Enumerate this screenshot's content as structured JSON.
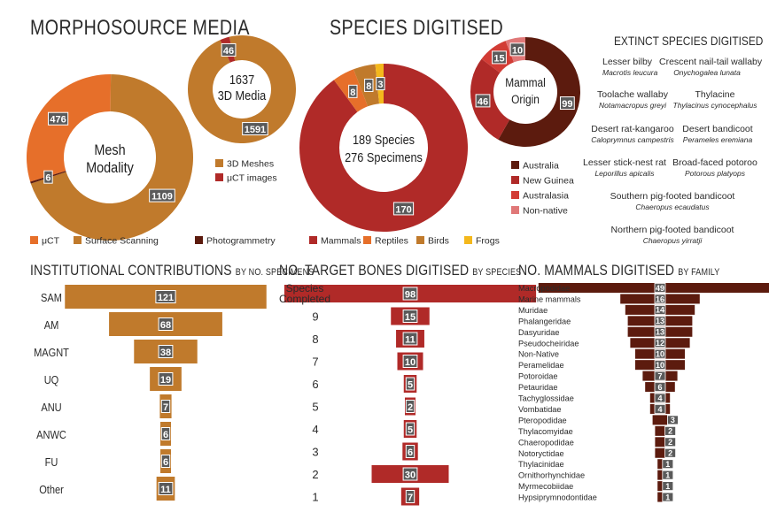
{
  "colors": {
    "ochre": "#C07A2C",
    "orange": "#E66F2A",
    "dark_brown": "#5C1B0E",
    "red": "#B02A28",
    "bright_red": "#D23C35",
    "light_red": "#E07878",
    "gold": "#F4B81C",
    "label_bg": "#5a5a5a"
  },
  "headings": {
    "morphosource": "MORPHOSOURCE MEDIA",
    "species": "SPECIES DIGITISED",
    "extinct": "EXTINCT SPECIES DIGITISED",
    "institutional": "INSTITUTIONAL CONTRIBUTIONS",
    "institutional_sub": "BY NO. SPECIMENS",
    "bones": "NO. TARGET BONES DIGITISED",
    "bones_sub": "BY SPECIES",
    "mammals": "NO. MAMMALS DIGITISED",
    "mammals_sub": "BY FAMILY"
  },
  "extinct_species": [
    {
      "name": "Lesser bilby",
      "sci": "Macrotis leucura"
    },
    {
      "name": "Crescent nail-tail wallaby",
      "sci": "Onychogalea lunata"
    },
    {
      "name": "Toolache wallaby",
      "sci": "Notamacropus greyi"
    },
    {
      "name": "Thylacine",
      "sci": "Thylacinus cynocephalus"
    },
    {
      "name": "Desert rat-kangaroo",
      "sci": "Caloprymnus campestris"
    },
    {
      "name": "Desert bandicoot",
      "sci": "Perameles eremiana"
    },
    {
      "name": "Lesser stick-nest rat",
      "sci": "Leporillus apicalis"
    },
    {
      "name": "Broad-faced potoroo",
      "sci": "Potorous platyops"
    },
    {
      "name": "Southern pig-footed bandicoot",
      "sci": "Chaeropus ecaudatus"
    },
    {
      "name": "Northern pig-footed bandicoot",
      "sci": "Chaeropus yirratji"
    }
  ],
  "chart_data": [
    {
      "id": "mesh_modality",
      "type": "pie",
      "center_label": [
        "Mesh",
        "Modality"
      ],
      "categories": [
        "μCT",
        "Surface Scanning",
        "Photogrammetry"
      ],
      "values": [
        476,
        1109,
        6
      ],
      "colors": [
        "#E66F2A",
        "#C07A2C",
        "#5C1B0E"
      ],
      "legend": "bottom"
    },
    {
      "id": "3d_media",
      "type": "pie",
      "center_label": [
        "1637",
        "3D Media"
      ],
      "categories": [
        "3D Meshes",
        "μCT images"
      ],
      "values": [
        1591,
        46
      ],
      "colors": [
        "#C07A2C",
        "#B02A28"
      ],
      "legend": "bottom"
    },
    {
      "id": "species_groups",
      "type": "pie",
      "center_label": [
        "189 Species",
        "276 Specimens"
      ],
      "categories": [
        "Mammals",
        "Reptiles",
        "Birds",
        "Frogs"
      ],
      "values": [
        170,
        8,
        8,
        3
      ],
      "colors": [
        "#B02A28",
        "#E66F2A",
        "#C07A2C",
        "#F4B81C"
      ],
      "legend": "bottom"
    },
    {
      "id": "mammal_origin",
      "type": "pie",
      "center_label": [
        "Mammal",
        "Origin"
      ],
      "categories": [
        "Australia",
        "New Guinea",
        "Australasia",
        "Non-native"
      ],
      "values": [
        99,
        46,
        15,
        10
      ],
      "colors": [
        "#5C1B0E",
        "#B02A28",
        "#D23C35",
        "#E07878"
      ],
      "legend": "bottom"
    },
    {
      "id": "institutional",
      "type": "bar",
      "categories": [
        "SAM",
        "AM",
        "MAGNT",
        "UQ",
        "ANU",
        "ANWC",
        "FU",
        "Other"
      ],
      "values": [
        121,
        68,
        38,
        19,
        7,
        6,
        6,
        11
      ],
      "color": "#C07A2C"
    },
    {
      "id": "bones",
      "type": "bar",
      "categories": [
        "Species Completed",
        "9",
        "8",
        "7",
        "6",
        "5",
        "4",
        "3",
        "2",
        "1"
      ],
      "values": [
        98,
        15,
        11,
        10,
        5,
        2,
        5,
        6,
        30,
        7
      ],
      "color": "#B02A28"
    },
    {
      "id": "mammal_families",
      "type": "bar",
      "categories": [
        "Macropodidae",
        "Marine mammals",
        "Muridae",
        "Phalangeridae",
        "Dasyuridae",
        "Pseudocheiridae",
        "Non-Native",
        "Peramelidae",
        "Potoroidae",
        "Petauridae",
        "Tachyglossidae",
        "Vombatidae",
        "Pteropodidae",
        "Thylacomyidae",
        "Chaeropodidae",
        "Notoryctidae",
        "Thylacinidae",
        "Ornithorhynchidae",
        "Myrmecobiidae",
        "Hypsiprymnodontidae"
      ],
      "values": [
        49,
        16,
        14,
        13,
        13,
        12,
        10,
        10,
        7,
        6,
        4,
        4,
        3,
        2,
        2,
        2,
        1,
        1,
        1,
        1
      ],
      "color": "#5C1B0E"
    }
  ]
}
